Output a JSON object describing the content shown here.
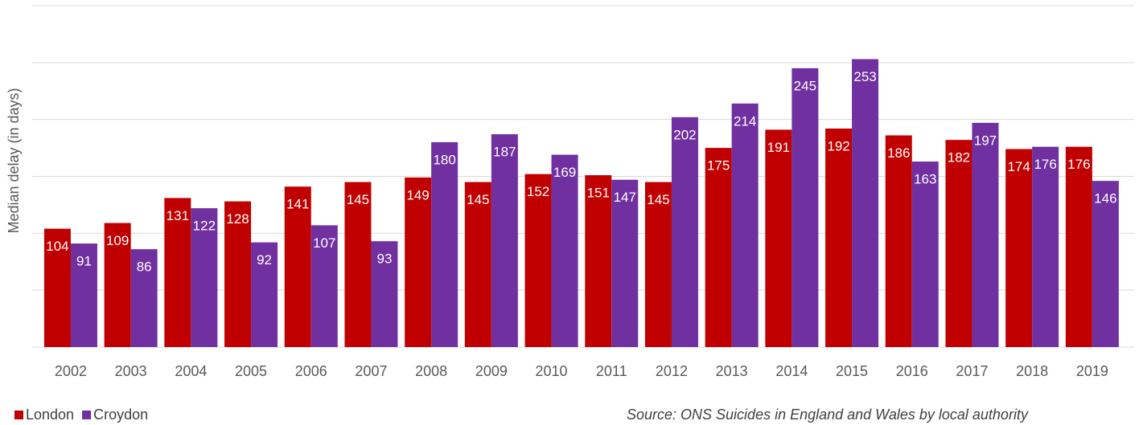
{
  "chart_data": {
    "type": "bar",
    "categories": [
      "2002",
      "2003",
      "2004",
      "2005",
      "2006",
      "2007",
      "2008",
      "2009",
      "2010",
      "2011",
      "2012",
      "2013",
      "2014",
      "2015",
      "2016",
      "2017",
      "2018",
      "2019"
    ],
    "series": [
      {
        "name": "London",
        "color": "#c00000",
        "values": [
          104,
          109,
          131,
          128,
          141,
          145,
          149,
          145,
          152,
          151,
          145,
          175,
          191,
          192,
          186,
          182,
          174,
          176
        ]
      },
      {
        "name": "Croydon",
        "color": "#7030a0",
        "values": [
          91,
          86,
          122,
          92,
          107,
          93,
          180,
          187,
          169,
          147,
          202,
          214,
          245,
          253,
          163,
          197,
          176,
          146
        ]
      }
    ],
    "y_label": "Median delay (in days)",
    "source": "Source: ONS Suicides in England and Wales by local authority",
    "ylim": [
      0,
      300
    ],
    "yticks": [
      0,
      50,
      100,
      150,
      200,
      250,
      300
    ],
    "grid": true,
    "legend": "bottom-left"
  }
}
